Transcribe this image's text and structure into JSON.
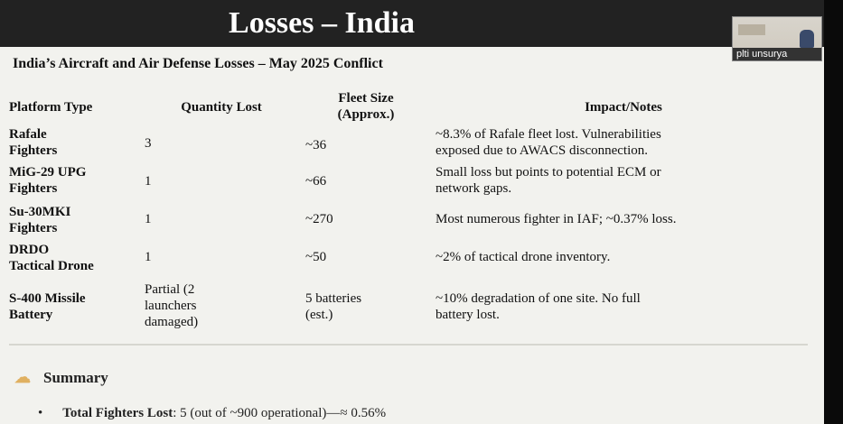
{
  "slide": {
    "title": "Losses – India",
    "subtitle": "India’s Aircraft and Air Defense Losses – May 2025 Conflict"
  },
  "participant": {
    "name": "plti unsurya"
  },
  "table": {
    "headers": {
      "platform": "Platform Type",
      "quantity": "Quantity Lost",
      "fleet_1": "Fleet Size",
      "fleet_2": "(Approx.)",
      "notes": "Impact/Notes"
    },
    "rows": [
      {
        "platform_1": "Rafale",
        "platform_2": "Fighters",
        "quantity_1": "3",
        "quantity_2": "",
        "quantity_3": "",
        "fleet_1": "~36",
        "fleet_2": "",
        "notes_1": "~8.3% of Rafale fleet lost. Vulnerabilities",
        "notes_2": "exposed due to AWACS disconnection."
      },
      {
        "platform_1": "MiG-29 UPG",
        "platform_2": "Fighters",
        "quantity_1": "1",
        "quantity_2": "",
        "quantity_3": "",
        "fleet_1": "~66",
        "fleet_2": "",
        "notes_1": "Small loss but points to potential ECM or",
        "notes_2": "network gaps."
      },
      {
        "platform_1": "Su-30MKI",
        "platform_2": "Fighters",
        "quantity_1": "1",
        "quantity_2": "",
        "quantity_3": "",
        "fleet_1": "~270",
        "fleet_2": "",
        "notes_1": "Most numerous fighter in IAF; ~0.37% loss.",
        "notes_2": ""
      },
      {
        "platform_1": "DRDO",
        "platform_2": "Tactical Drone",
        "quantity_1": "1",
        "quantity_2": "",
        "quantity_3": "",
        "fleet_1": "~50",
        "fleet_2": "",
        "notes_1": "~2% of tactical drone inventory.",
        "notes_2": ""
      },
      {
        "platform_1": "S-400 Missile",
        "platform_2": "Battery",
        "quantity_1": "Partial (2",
        "quantity_2": "launchers",
        "quantity_3": "damaged)",
        "fleet_1": "5 batteries",
        "fleet_2": "(est.)",
        "notes_1": "~10% degradation of one site. No full",
        "notes_2": "battery lost."
      }
    ]
  },
  "summary": {
    "icon": "summary-icon",
    "heading": "Summary",
    "bullet_label": "Total Fighters Lost",
    "bullet_text": ": 5 (out of ~900 operational)—≈ 0.56%"
  }
}
